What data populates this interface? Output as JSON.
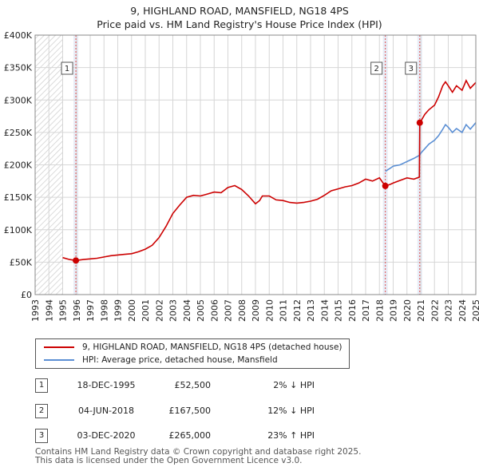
{
  "title_line1": "9, HIGHLAND ROAD, MANSFIELD, NG18 4PS",
  "title_line2": "Price paid vs. HM Land Registry's House Price Index (HPI)",
  "colors": {
    "property": "#cc0000",
    "hpi": "#5b8fd4",
    "marker": "#cc0000"
  },
  "chart_data": {
    "type": "line",
    "y_ticks": [
      "£0",
      "£50K",
      "£100K",
      "£150K",
      "£200K",
      "£250K",
      "£300K",
      "£350K",
      "£400K"
    ],
    "y_tick_values": [
      0,
      50000,
      100000,
      150000,
      200000,
      250000,
      300000,
      350000,
      400000
    ],
    "x_ticks": [
      "1993",
      "1994",
      "1995",
      "1996",
      "1997",
      "1998",
      "1999",
      "2000",
      "2001",
      "2002",
      "2003",
      "2004",
      "2005",
      "2006",
      "2007",
      "2008",
      "2009",
      "2010",
      "2011",
      "2012",
      "2013",
      "2014",
      "2015",
      "2016",
      "2017",
      "2018",
      "2019",
      "2020",
      "2021",
      "2022",
      "2023",
      "2024",
      "2025"
    ],
    "xlim": [
      1993,
      2025
    ],
    "ylim": [
      0,
      400000
    ],
    "hatched_before": 1995.0,
    "series": [
      {
        "name": "9, HIGHLAND ROAD, MANSFIELD, NG18 4PS (detached house)",
        "x": [
          1995.0,
          1995.5,
          1995.96,
          1996.5,
          1997,
          1997.5,
          1998,
          1998.5,
          1999,
          1999.5,
          2000,
          2000.5,
          2001,
          2001.5,
          2002,
          2002.5,
          2003,
          2003.5,
          2004,
          2004.5,
          2005,
          2005.5,
          2006,
          2006.5,
          2007,
          2007.5,
          2008,
          2008.5,
          2009,
          2009.3,
          2009.5,
          2010,
          2010.5,
          2011,
          2011.5,
          2012,
          2012.5,
          2013,
          2013.5,
          2014,
          2014.5,
          2015,
          2015.5,
          2016,
          2016.5,
          2017,
          2017.5,
          2018.0,
          2018.2,
          2018.43,
          2018.8,
          2019,
          2019.5,
          2020,
          2020.5,
          2020.9,
          2020.93,
          2021,
          2021.3,
          2021.6,
          2022,
          2022.3,
          2022.6,
          2022.8,
          2023,
          2023.3,
          2023.6,
          2024,
          2024.3,
          2024.6,
          2025
        ],
        "values": [
          57000,
          54000,
          52500,
          54000,
          55000,
          56000,
          58000,
          60000,
          61000,
          62000,
          63000,
          66000,
          70000,
          76000,
          88000,
          105000,
          125000,
          138000,
          150000,
          153000,
          152000,
          155000,
          158000,
          157000,
          165000,
          168000,
          162000,
          152000,
          140000,
          145000,
          152000,
          152000,
          146000,
          145000,
          142000,
          141000,
          142000,
          144000,
          147000,
          153000,
          160000,
          163000,
          166000,
          168000,
          172000,
          178000,
          175000,
          180000,
          174000,
          167500,
          170000,
          172000,
          176000,
          180000,
          178000,
          181000,
          265000,
          267000,
          278000,
          285000,
          292000,
          305000,
          322000,
          328000,
          322000,
          312000,
          322000,
          315000,
          330000,
          318000,
          327000
        ]
      },
      {
        "name": "HPI: Average price, detached house, Mansfield",
        "x": [
          2018.43,
          2018.8,
          2019,
          2019.5,
          2020,
          2020.5,
          2020.93,
          2021,
          2021.3,
          2021.6,
          2022,
          2022.3,
          2022.6,
          2022.8,
          2023,
          2023.3,
          2023.6,
          2024,
          2024.3,
          2024.6,
          2025
        ],
        "values": [
          190000,
          195000,
          198000,
          200000,
          205000,
          210000,
          215000,
          218000,
          225000,
          232000,
          238000,
          245000,
          255000,
          262000,
          258000,
          250000,
          256000,
          250000,
          262000,
          255000,
          265000
        ]
      }
    ],
    "sales": [
      {
        "num": "1",
        "date": "18-DEC-1995",
        "x": 1995.96,
        "price": "£52,500",
        "value": 52500,
        "hpi": "2% ↓ HPI"
      },
      {
        "num": "2",
        "date": "04-JUN-2018",
        "x": 2018.43,
        "price": "£167,500",
        "value": 167500,
        "hpi": "12% ↓ HPI"
      },
      {
        "num": "3",
        "date": "03-DEC-2020",
        "x": 2020.93,
        "price": "£265,000",
        "value": 265000,
        "hpi": "23% ↑ HPI"
      }
    ]
  },
  "legend": {
    "property_label": "9, HIGHLAND ROAD, MANSFIELD, NG18 4PS (detached house)",
    "hpi_label": "HPI: Average price, detached house, Mansfield"
  },
  "footer_line1": "Contains HM Land Registry data © Crown copyright and database right 2025.",
  "footer_line2": "This data is licensed under the Open Government Licence v3.0."
}
